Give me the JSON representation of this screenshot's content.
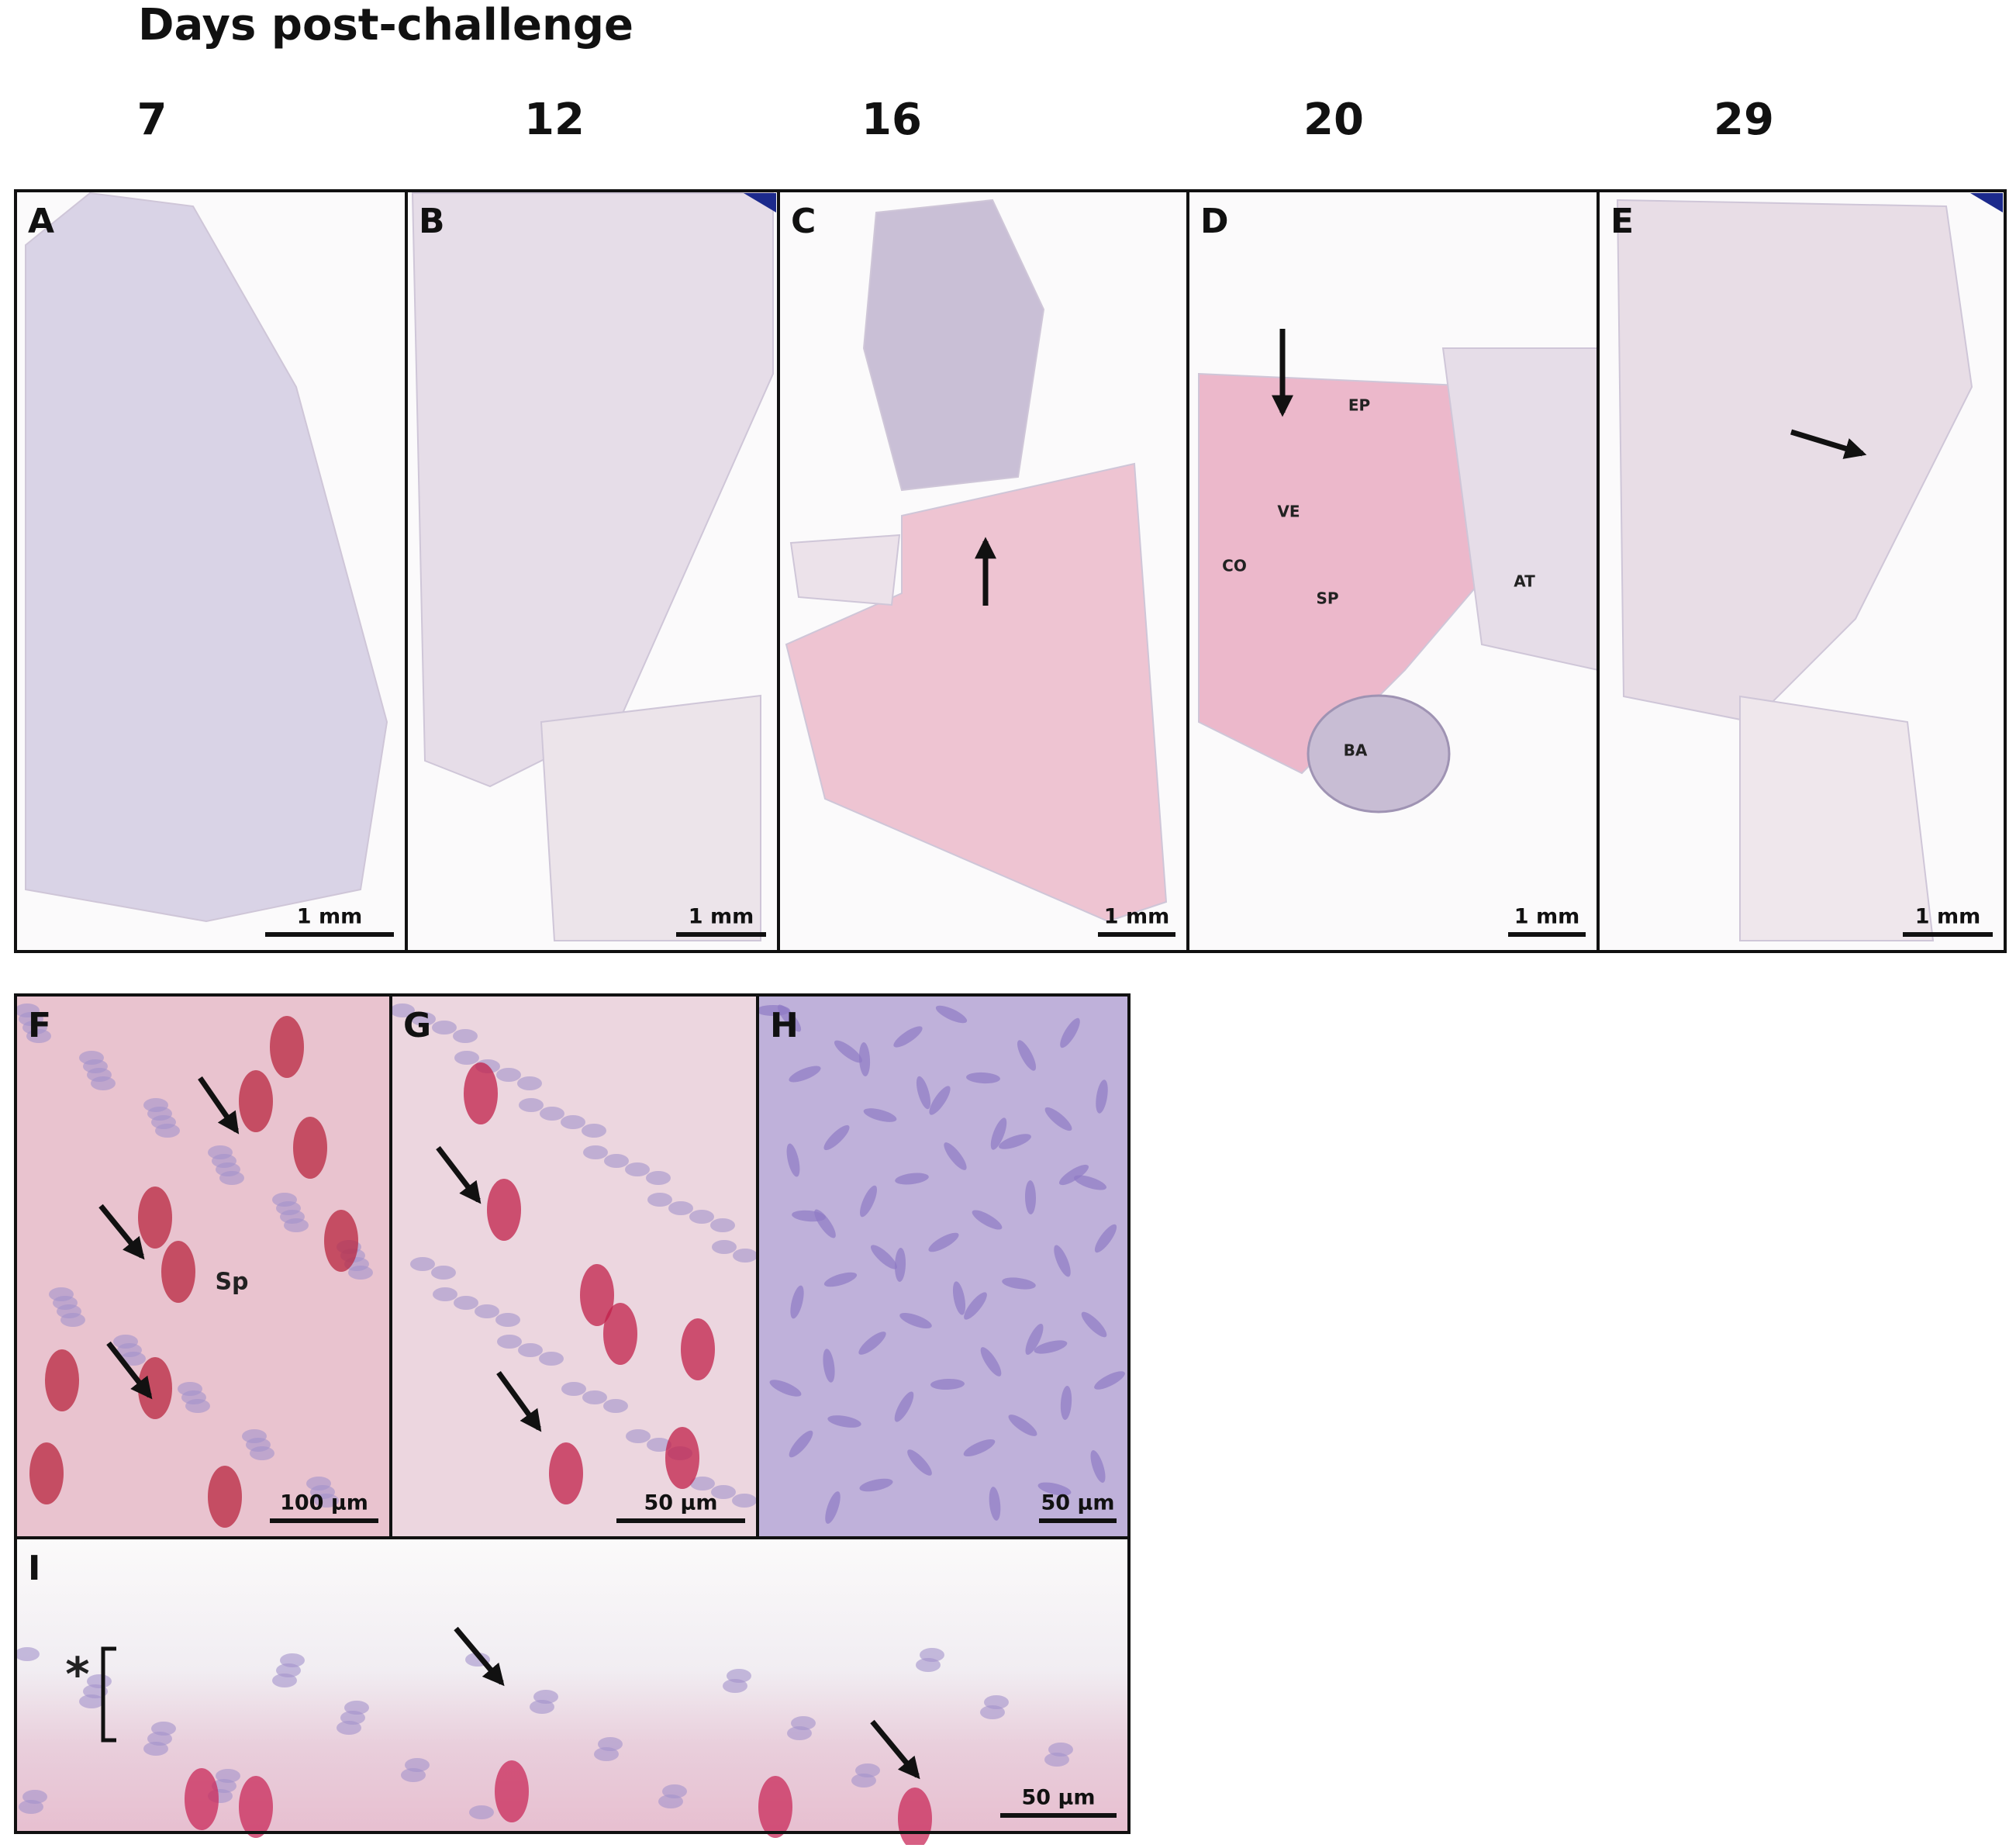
{
  "header": {
    "title": "Days post-challenge",
    "days": [
      "7",
      "12",
      "16",
      "20",
      "29"
    ]
  },
  "panels": [
    {
      "label": "A",
      "scale_bar": "1 mm"
    },
    {
      "label": "B",
      "scale_bar": "1 mm"
    },
    {
      "label": "C",
      "scale_bar": "1 mm"
    },
    {
      "label": "D",
      "scale_bar": "1 mm",
      "annotations": [
        "EP",
        "VE",
        "CO",
        "SP",
        "AT",
        "BA"
      ]
    },
    {
      "label": "E",
      "scale_bar": "1 mm"
    },
    {
      "label": "F",
      "scale_bar": "100 µm",
      "annotations": [
        "Sp"
      ]
    },
    {
      "label": "G",
      "scale_bar": "50 µm"
    },
    {
      "label": "H",
      "scale_bar": "50 µm"
    },
    {
      "label": "I",
      "scale_bar": "50 µm",
      "annotations": [
        "*"
      ]
    }
  ]
}
